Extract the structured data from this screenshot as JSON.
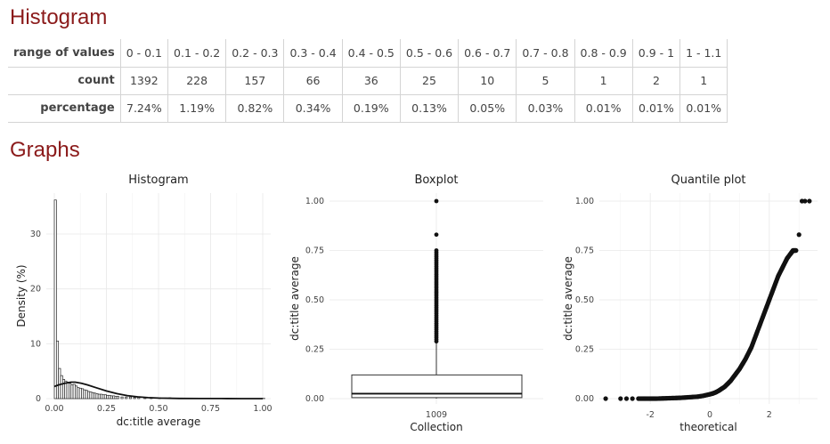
{
  "sections": {
    "histogram_heading": "Histogram",
    "graphs_heading": "Graphs"
  },
  "freq_table": {
    "row_labels": [
      "range of values",
      "count",
      "percentage"
    ],
    "ranges": [
      "0 - 0.1",
      "0.1 - 0.2",
      "0.2 - 0.3",
      "0.3 - 0.4",
      "0.4 - 0.5",
      "0.5 - 0.6",
      "0.6 - 0.7",
      "0.7 - 0.8",
      "0.8 - 0.9",
      "0.9 - 1",
      "1 - 1.1"
    ],
    "counts": [
      "1392",
      "228",
      "157",
      "66",
      "36",
      "25",
      "10",
      "5",
      "1",
      "2",
      "1"
    ],
    "percentages": [
      "7.24%",
      "1.19%",
      "0.82%",
      "0.34%",
      "0.19%",
      "0.13%",
      "0.05%",
      "0.03%",
      "0.01%",
      "0.01%",
      "0.01%"
    ]
  },
  "chart_data": [
    {
      "type": "bar",
      "title": "Histogram",
      "xlabel": "dc:title average",
      "ylabel": "Density (%)",
      "xlim": [
        0,
        1
      ],
      "ylim": [
        0,
        36
      ],
      "xticks": [
        "0.00",
        "0.25",
        "0.50",
        "0.75",
        "1.00"
      ],
      "yticks": [
        "0",
        "10",
        "20",
        "30"
      ],
      "bin_width": 0.01,
      "bins_start": [
        0.0,
        0.01,
        0.02,
        0.03,
        0.04,
        0.05,
        0.06,
        0.07,
        0.08,
        0.09,
        0.1,
        0.11,
        0.12,
        0.13,
        0.14,
        0.15,
        0.16,
        0.17,
        0.18,
        0.19,
        0.2,
        0.21,
        0.22,
        0.23,
        0.24,
        0.25,
        0.26,
        0.27,
        0.28,
        0.29,
        0.3,
        0.32,
        0.34,
        0.36,
        0.38,
        0.4,
        0.43,
        0.46,
        0.5,
        0.55,
        0.6,
        0.66,
        0.75,
        0.83,
        1.0
      ],
      "density": [
        36.2,
        10.5,
        5.5,
        4.2,
        3.5,
        3.2,
        3.0,
        2.8,
        2.5,
        2.6,
        2.3,
        2.0,
        1.9,
        1.8,
        1.6,
        1.5,
        1.3,
        1.2,
        1.1,
        1.0,
        0.9,
        0.8,
        0.8,
        0.7,
        0.7,
        0.6,
        0.6,
        0.5,
        0.5,
        0.4,
        0.4,
        0.3,
        0.3,
        0.3,
        0.2,
        0.2,
        0.2,
        0.2,
        0.15,
        0.15,
        0.1,
        0.1,
        0.08,
        0.06,
        0.05
      ],
      "density_curve": {
        "x": [
          0.0,
          0.02,
          0.05,
          0.08,
          0.1,
          0.13,
          0.16,
          0.2,
          0.25,
          0.3,
          0.35,
          0.4,
          0.45,
          0.5,
          0.6,
          0.7,
          0.8,
          0.9,
          1.0
        ],
        "y": [
          2.2,
          2.5,
          2.8,
          3.0,
          3.0,
          2.8,
          2.5,
          2.0,
          1.4,
          0.9,
          0.55,
          0.32,
          0.18,
          0.1,
          0.04,
          0.02,
          0.01,
          0.005,
          0.0
        ]
      }
    },
    {
      "type": "boxplot",
      "title": "Boxplot",
      "xlabel": "Collection",
      "ylabel": "dc:title average",
      "category": "1009",
      "ylim": [
        0,
        1
      ],
      "yticks": [
        "0.00",
        "0.25",
        "0.50",
        "0.75",
        "1.00"
      ],
      "q1": 0.005,
      "median": 0.025,
      "q3": 0.12,
      "whisker_low": 0.0,
      "whisker_high": 0.29,
      "outliers": [
        0.29,
        0.3,
        0.31,
        0.32,
        0.33,
        0.34,
        0.35,
        0.36,
        0.37,
        0.38,
        0.39,
        0.4,
        0.41,
        0.42,
        0.43,
        0.44,
        0.45,
        0.46,
        0.47,
        0.48,
        0.49,
        0.5,
        0.51,
        0.52,
        0.53,
        0.54,
        0.55,
        0.56,
        0.57,
        0.58,
        0.59,
        0.6,
        0.61,
        0.62,
        0.63,
        0.64,
        0.65,
        0.66,
        0.67,
        0.68,
        0.69,
        0.7,
        0.71,
        0.72,
        0.73,
        0.74,
        0.75,
        0.83,
        1.0
      ]
    },
    {
      "type": "scatter",
      "title": "Quantile plot",
      "xlabel": "theoretical",
      "ylabel": "dc:title average",
      "xlim": [
        -3.6,
        3.6
      ],
      "ylim": [
        0,
        1
      ],
      "xticks": [
        "-2",
        "0",
        "2"
      ],
      "yticks": [
        "0.00",
        "0.25",
        "0.50",
        "0.75",
        "1.00"
      ],
      "x": [
        -3.5,
        -3.0,
        -2.8,
        -2.6,
        -2.4,
        -2.2,
        -2.0,
        -1.8,
        -1.6,
        -1.4,
        -1.2,
        -1.0,
        -0.8,
        -0.6,
        -0.4,
        -0.2,
        0.0,
        0.1,
        0.2,
        0.3,
        0.4,
        0.5,
        0.6,
        0.7,
        0.8,
        0.9,
        1.0,
        1.1,
        1.2,
        1.3,
        1.4,
        1.5,
        1.6,
        1.7,
        1.8,
        1.9,
        2.0,
        2.1,
        2.2,
        2.3,
        2.4,
        2.5,
        2.6,
        2.7,
        2.75,
        2.8,
        2.85,
        2.9,
        3.0,
        3.1,
        3.2,
        3.35
      ],
      "y": [
        0.0,
        0.0,
        0.0,
        0.0,
        0.0,
        0.0,
        0.0,
        0.0,
        0.001,
        0.002,
        0.003,
        0.004,
        0.006,
        0.008,
        0.01,
        0.015,
        0.022,
        0.026,
        0.032,
        0.04,
        0.05,
        0.06,
        0.075,
        0.09,
        0.11,
        0.13,
        0.15,
        0.175,
        0.2,
        0.23,
        0.26,
        0.3,
        0.34,
        0.38,
        0.42,
        0.46,
        0.5,
        0.54,
        0.58,
        0.62,
        0.65,
        0.68,
        0.71,
        0.73,
        0.74,
        0.75,
        0.75,
        0.75,
        0.83,
        1.0,
        1.0,
        1.0
      ]
    }
  ]
}
